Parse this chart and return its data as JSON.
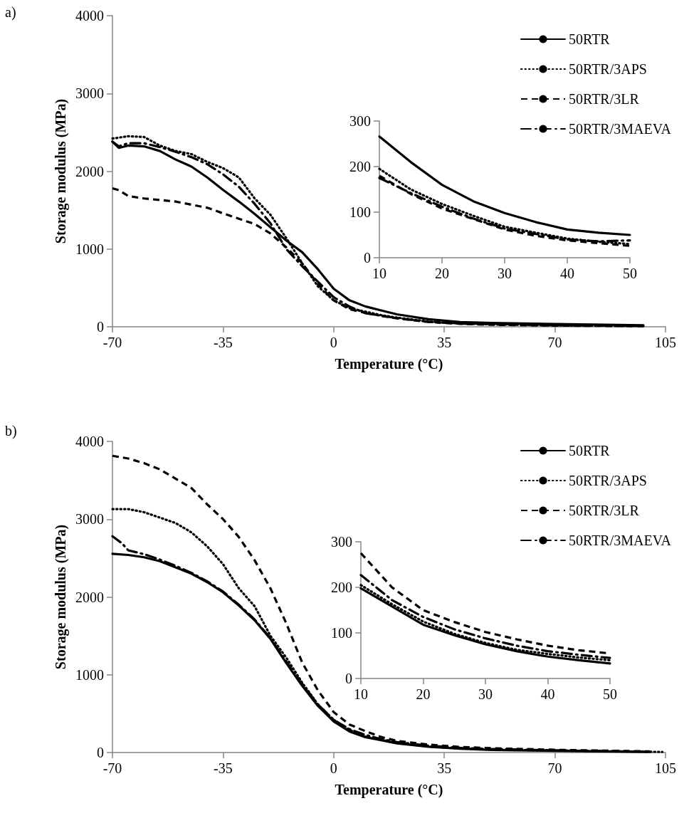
{
  "chart_data": [
    {
      "type": "line",
      "title": "a)",
      "xlabel": "Temperature (°C)",
      "ylabel": "Storage modulus (MPa)",
      "xlim": [
        -70,
        105
      ],
      "ylim": [
        0,
        4000
      ],
      "xticks": [
        -70,
        -35,
        0,
        35,
        70,
        105
      ],
      "yticks": [
        0,
        1000,
        2000,
        3000,
        4000
      ],
      "legend": "top right",
      "series": [
        {
          "name": "50RTR",
          "color": "#000000",
          "line_style": "solid",
          "x": [
            -70,
            -68,
            -65,
            -60,
            -55,
            -50,
            -45,
            -40,
            -35,
            -30,
            -25,
            -20,
            -15,
            -10,
            -5,
            0,
            5,
            10,
            15,
            20,
            30,
            40,
            50,
            70,
            98
          ],
          "values": [
            2380,
            2300,
            2330,
            2320,
            2260,
            2150,
            2060,
            1920,
            1760,
            1610,
            1450,
            1280,
            1110,
            960,
            740,
            490,
            340,
            262,
            210,
            160,
            98,
            62,
            50,
            35,
            20
          ]
        },
        {
          "name": "50RTR/3APS",
          "color": "#000000",
          "line_style": "dotted",
          "x": [
            -70,
            -65,
            -60,
            -55,
            -50,
            -45,
            -40,
            -35,
            -30,
            -25,
            -20,
            -15,
            -10,
            -5,
            0,
            5,
            10,
            15,
            20,
            30,
            40,
            50,
            70,
            98
          ],
          "values": [
            2420,
            2450,
            2440,
            2330,
            2260,
            2220,
            2120,
            2040,
            1920,
            1650,
            1440,
            1140,
            820,
            520,
            340,
            240,
            195,
            150,
            118,
            68,
            42,
            30,
            18,
            10
          ]
        },
        {
          "name": "50RTR/3LR",
          "color": "#000000",
          "line_style": "dashed",
          "x": [
            -70,
            -68,
            -65,
            -60,
            -50,
            -45,
            -40,
            -35,
            -30,
            -25,
            -20,
            -15,
            -10,
            -5,
            0,
            5,
            10,
            15,
            20,
            30,
            40,
            50,
            70,
            98
          ],
          "values": [
            1780,
            1756,
            1681,
            1650,
            1610,
            1570,
            1530,
            1458,
            1390,
            1320,
            1200,
            1020,
            820,
            550,
            340,
            225,
            180,
            140,
            108,
            62,
            38,
            26,
            15,
            8
          ]
        },
        {
          "name": "50RTR/3MAEVA",
          "color": "#000000",
          "line_style": "dashdot",
          "x": [
            -70,
            -68,
            -65,
            -60,
            -55,
            -50,
            -45,
            -40,
            -35,
            -30,
            -25,
            -20,
            -15,
            -10,
            -5,
            0,
            5,
            10,
            15,
            20,
            30,
            40,
            50,
            70,
            98
          ],
          "values": [
            2380,
            2320,
            2360,
            2360,
            2310,
            2250,
            2180,
            2090,
            1960,
            1800,
            1580,
            1330,
            1000,
            780,
            580,
            380,
            260,
            175,
            142,
            112,
            64,
            40,
            38,
            20,
            10
          ]
        }
      ]
    },
    {
      "type": "line",
      "xlim": [
        10,
        50
      ],
      "ylim": [
        0,
        300
      ],
      "xticks": [
        10,
        20,
        30,
        40,
        50
      ],
      "yticks": [
        0,
        100,
        200,
        300
      ],
      "series": [
        {
          "color": "#000000",
          "line_style": "solid",
          "x": [
            10,
            15,
            20,
            25,
            30,
            35,
            40,
            45,
            50
          ],
          "values": [
            266,
            210,
            160,
            124,
            98,
            78,
            62,
            55,
            50
          ]
        },
        {
          "color": "#000000",
          "line_style": "dotted",
          "x": [
            10,
            15,
            20,
            25,
            30,
            35,
            40,
            45,
            50
          ],
          "values": [
            195,
            150,
            118,
            92,
            68,
            55,
            42,
            35,
            30
          ]
        },
        {
          "color": "#000000",
          "line_style": "dashed",
          "x": [
            10,
            15,
            20,
            25,
            30,
            35,
            40,
            45,
            50
          ],
          "values": [
            180,
            140,
            108,
            85,
            62,
            48,
            38,
            32,
            26
          ]
        },
        {
          "color": "#000000",
          "line_style": "dashdot",
          "x": [
            10,
            15,
            20,
            25,
            30,
            35,
            40,
            45,
            50
          ],
          "values": [
            175,
            142,
            112,
            86,
            64,
            52,
            40,
            36,
            38
          ]
        }
      ]
    },
    {
      "type": "line",
      "title": "b)",
      "xlabel": "Temperature (°C)",
      "ylabel": "Storage modulus (MPa)",
      "xlim": [
        -70,
        105
      ],
      "ylim": [
        0,
        4000
      ],
      "xticks": [
        -70,
        -35,
        0,
        35,
        70,
        105
      ],
      "yticks": [
        0,
        1000,
        2000,
        3000,
        4000
      ],
      "legend": "top right",
      "series": [
        {
          "name": "50RTR",
          "color": "#000000",
          "line_style": "solid",
          "x": [
            -70,
            -65,
            -60,
            -55,
            -50,
            -45,
            -40,
            -35,
            -30,
            -25,
            -20,
            -15,
            -10,
            -5,
            0,
            5,
            10,
            15,
            20,
            30,
            40,
            50,
            70,
            100
          ],
          "values": [
            2555,
            2540,
            2510,
            2460,
            2380,
            2300,
            2190,
            2060,
            1890,
            1700,
            1460,
            1150,
            860,
            600,
            400,
            270,
            198,
            158,
            118,
            75,
            48,
            33,
            22,
            8
          ]
        },
        {
          "name": "50RTR/3APS",
          "color": "#000000",
          "line_style": "dotted",
          "x": [
            -70,
            -65,
            -60,
            -55,
            -50,
            -45,
            -40,
            -35,
            -30,
            -25,
            -20,
            -15,
            -10,
            -5,
            0,
            5,
            10,
            15,
            20,
            30,
            40,
            50,
            70,
            104
          ],
          "values": [
            3130,
            3130,
            3090,
            3020,
            2950,
            2830,
            2650,
            2420,
            2110,
            1880,
            1500,
            1220,
            900,
            620,
            420,
            290,
            205,
            163,
            125,
            78,
            54,
            40,
            25,
            8
          ]
        },
        {
          "name": "50RTR/3LR",
          "color": "#000000",
          "line_style": "dashed",
          "x": [
            -70,
            -65,
            -60,
            -55,
            -50,
            -45,
            -40,
            -35,
            -30,
            -25,
            -20,
            -15,
            -10,
            -5,
            0,
            5,
            10,
            15,
            20,
            30,
            40,
            50,
            70,
            100
          ],
          "values": [
            3815,
            3780,
            3720,
            3640,
            3520,
            3400,
            3190,
            3000,
            2770,
            2470,
            2110,
            1660,
            1160,
            800,
            520,
            360,
            275,
            200,
            150,
            102,
            72,
            55,
            35,
            15
          ]
        },
        {
          "name": "50RTR/3MAEVA",
          "color": "#000000",
          "line_style": "dashdot",
          "x": [
            -70,
            -67,
            -65,
            -60,
            -55,
            -50,
            -45,
            -40,
            -35,
            -30,
            -25,
            -20,
            -15,
            -10,
            -5,
            0,
            5,
            10,
            15,
            20,
            30,
            40,
            50,
            70,
            100
          ],
          "values": [
            2780,
            2690,
            2600,
            2550,
            2480,
            2400,
            2310,
            2200,
            2070,
            1900,
            1710,
            1470,
            1170,
            880,
            620,
            420,
            300,
            227,
            172,
            135,
            88,
            60,
            45,
            28,
            10
          ]
        }
      ]
    },
    {
      "type": "line",
      "xlim": [
        10,
        50
      ],
      "ylim": [
        0,
        300
      ],
      "xticks": [
        10,
        20,
        30,
        40,
        50
      ],
      "yticks": [
        0,
        100,
        200,
        300
      ],
      "series": [
        {
          "color": "#000000",
          "line_style": "solid",
          "x": [
            10,
            15,
            20,
            25,
            30,
            35,
            40,
            45,
            50
          ],
          "values": [
            198,
            158,
            118,
            95,
            75,
            60,
            48,
            40,
            33
          ]
        },
        {
          "color": "#000000",
          "line_style": "dotted",
          "x": [
            10,
            15,
            20,
            25,
            30,
            35,
            40,
            45,
            50
          ],
          "values": [
            205,
            163,
            125,
            98,
            78,
            63,
            54,
            46,
            40
          ]
        },
        {
          "color": "#000000",
          "line_style": "dashed",
          "x": [
            10,
            15,
            20,
            25,
            30,
            35,
            40,
            45,
            50
          ],
          "values": [
            275,
            200,
            150,
            124,
            102,
            86,
            72,
            62,
            55
          ]
        },
        {
          "color": "#000000",
          "line_style": "dashdot",
          "x": [
            10,
            15,
            20,
            25,
            30,
            35,
            40,
            45,
            50
          ],
          "values": [
            227,
            172,
            135,
            108,
            88,
            72,
            60,
            52,
            45
          ]
        }
      ]
    }
  ]
}
